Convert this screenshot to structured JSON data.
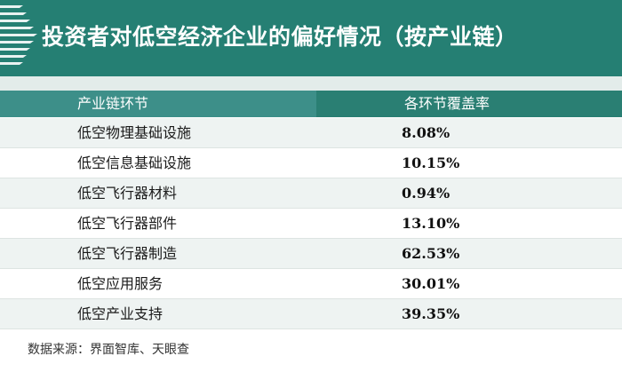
{
  "title": "投资者对低空经济企业的偏好情况（按产业链）",
  "source": "数据来源：界面智库、天眼查",
  "colors": {
    "header_bg": "#257f73",
    "subband_bg": "#e3ecea",
    "th_left_bg": "#3d8f89",
    "th_right_bg": "#2a7f73",
    "row_alt_bg": "#eef3f2"
  },
  "chart_data": {
    "type": "table",
    "title": "投资者对低空经济企业的偏好情况（按产业链）",
    "columns": [
      "产业链环节",
      "各环节覆盖率"
    ],
    "rows": [
      {
        "segment": "低空物理基础设施",
        "coverage": "8.08%"
      },
      {
        "segment": "低空信息基础设施",
        "coverage": "10.15%"
      },
      {
        "segment": "低空飞行器材料",
        "coverage": "0.94%"
      },
      {
        "segment": "低空飞行器部件",
        "coverage": "13.10%"
      },
      {
        "segment": "低空飞行器制造",
        "coverage": "62.53%"
      },
      {
        "segment": "低空应用服务",
        "coverage": "30.01%"
      },
      {
        "segment": "低空产业支持",
        "coverage": "39.35%"
      }
    ]
  }
}
